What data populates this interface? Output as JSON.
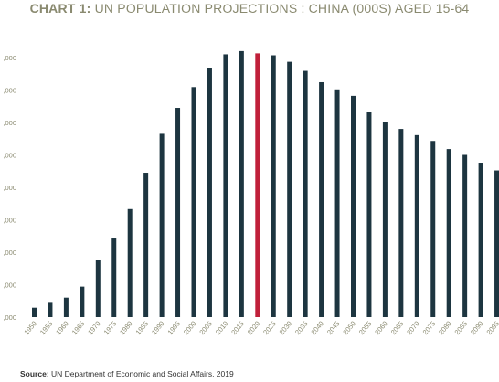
{
  "title": {
    "lead": "CHART 1:",
    "rest": " UN POPULATION PROJECTIONS : CHINA (000S) AGED 15-64"
  },
  "source": {
    "label": "Source:",
    "text": " UN Department of Economic and Social Affairs, 2019"
  },
  "colors": {
    "bar": "#1d3540",
    "highlight": "#c0203a",
    "axis_text": "#8a8a70",
    "title": "#8a8a70"
  },
  "chart_data": {
    "type": "bar",
    "title": "CHART 1: UN POPULATION PROJECTIONS : CHINA (000S) AGED 15-64",
    "xlabel": "",
    "ylabel": "",
    "categories": [
      "1950",
      "1955",
      "1960",
      "1965",
      "1970",
      "1975",
      "1980",
      "1985",
      "1990",
      "1995",
      "2000",
      "2005",
      "2010",
      "2015",
      "2020",
      "2025",
      "2030",
      "2035",
      "2040",
      "2045",
      "2050",
      "2055",
      "2060",
      "2065",
      "2070",
      "2075",
      "2080",
      "2085",
      "2090",
      "2095"
    ],
    "values": [
      329000,
      344000,
      360000,
      394000,
      476000,
      545000,
      633000,
      745000,
      865000,
      945000,
      1009000,
      1069000,
      1110000,
      1120000,
      1113000,
      1107000,
      1087000,
      1059000,
      1024000,
      1002000,
      982000,
      931000,
      902000,
      880000,
      861000,
      843000,
      818000,
      800000,
      776000,
      752000
    ],
    "highlight_category": "2020",
    "ylim": [
      300000,
      1100000
    ],
    "y_ticks_visible": [
      ",000",
      ",000",
      ",000",
      ",000",
      ",000",
      ",000",
      ",000",
      ",000",
      ",000"
    ],
    "x_tick_labels": [
      "1950",
      "1955",
      "1960",
      "1965",
      "1970",
      "1975",
      "1980",
      "1985",
      "1990",
      "1995",
      "2000",
      "2005",
      "2010",
      "2015",
      "2020",
      "2025",
      "2030",
      "2035",
      "2040",
      "2045",
      "2050",
      "2055",
      "2060",
      "2065",
      "2070",
      "2075",
      "2080",
      "2085",
      "2090",
      "2095"
    ],
    "grid": false,
    "legend": "none"
  }
}
